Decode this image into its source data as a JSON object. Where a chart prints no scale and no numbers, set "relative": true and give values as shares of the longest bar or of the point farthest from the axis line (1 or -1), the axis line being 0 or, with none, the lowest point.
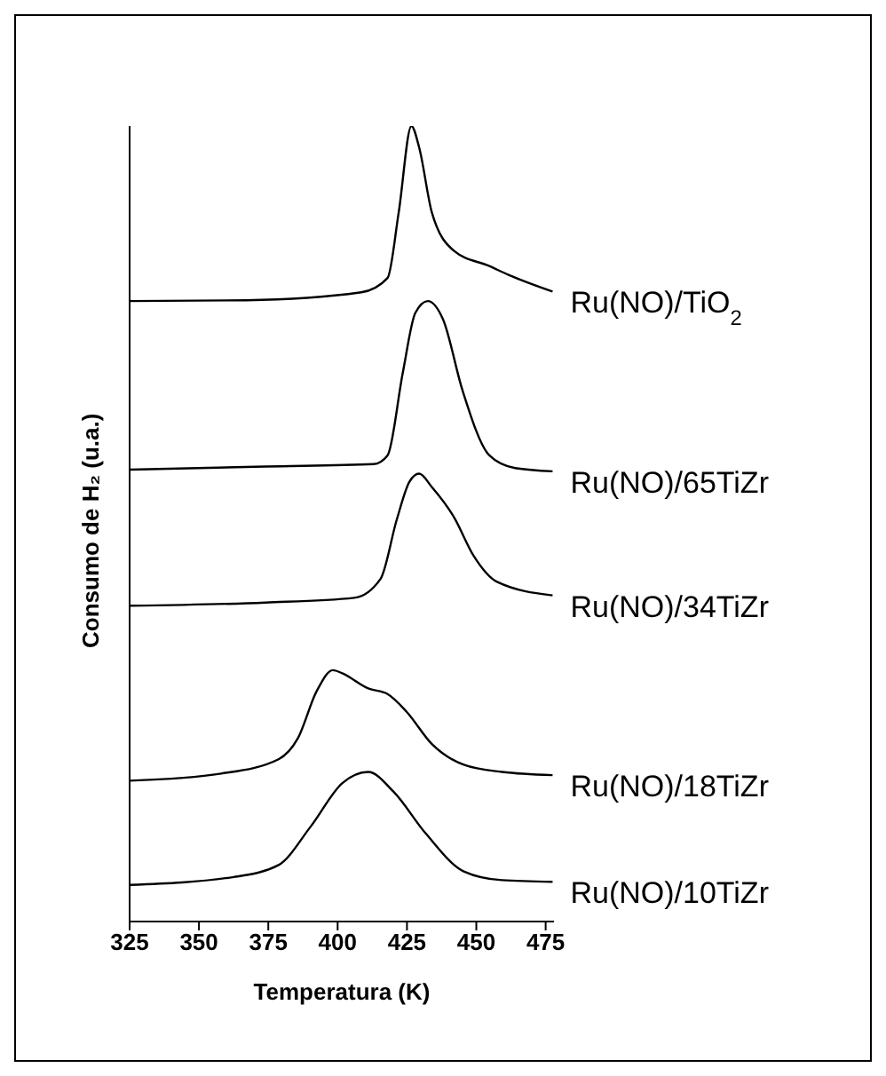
{
  "chart_data": {
    "type": "line",
    "xlabel": "Temperatura (K)",
    "ylabel": "Consumo de H₂ (u.a.)",
    "relative": true,
    "xlim": [
      325,
      478
    ],
    "xticks": [
      325,
      350,
      375,
      400,
      425,
      450,
      475
    ],
    "legend": false,
    "grid": false,
    "marker": "none",
    "line_style": "solid",
    "series": [
      {
        "name": "Ru(NO)/TiO$_{2}$",
        "color": "#000000",
        "x": [
          325,
          367,
          408.5,
          418,
          422,
          426.6,
          429.4,
          434,
          442,
          454.7,
          461.6,
          477.5
        ],
        "values": [
          0.78,
          0.781,
          0.791,
          0.809,
          0.891,
          1.0,
          0.973,
          0.891,
          0.843,
          0.824,
          0.813,
          0.792
        ]
      },
      {
        "name": "Ru(NO)/65TiZr",
        "color": "#000000",
        "x": [
          325,
          374,
          413,
          418,
          423.5,
          428,
          432.5,
          438,
          445,
          454.7,
          464,
          477.5
        ],
        "values": [
          0.568,
          0.572,
          0.575,
          0.586,
          0.69,
          0.765,
          0.78,
          0.757,
          0.668,
          0.586,
          0.57,
          0.566
        ]
      },
      {
        "name": "Ru(NO)/34TiZr",
        "color": "#000000",
        "x": [
          325,
          374,
          406,
          415.5,
          421.3,
          425.9,
          429.4,
          434,
          442,
          449,
          457.5,
          477.5
        ],
        "values": [
          0.397,
          0.401,
          0.407,
          0.431,
          0.505,
          0.553,
          0.563,
          0.546,
          0.508,
          0.46,
          0.427,
          0.41
        ]
      },
      {
        "name": "Ru(NO)/18TiZr",
        "color": "#000000",
        "x": [
          325,
          358,
          378.7,
          385.6,
          392.5,
          398.3,
          401.7,
          411,
          418,
          424.8,
          434,
          445.5,
          459.3,
          477.5
        ],
        "values": [
          0.177,
          0.186,
          0.204,
          0.23,
          0.29,
          0.316,
          0.312,
          0.293,
          0.286,
          0.264,
          0.223,
          0.197,
          0.188,
          0.184
        ]
      },
      {
        "name": "Ru(NO)/10TiZr",
        "color": "#000000",
        "x": [
          325,
          362.6,
          378.7,
          390.2,
          401.7,
          411,
          420.2,
          431.7,
          445.5,
          459.3,
          477.5
        ],
        "values": [
          0.046,
          0.056,
          0.071,
          0.119,
          0.174,
          0.188,
          0.163,
          0.111,
          0.063,
          0.052,
          0.05
        ]
      }
    ]
  }
}
